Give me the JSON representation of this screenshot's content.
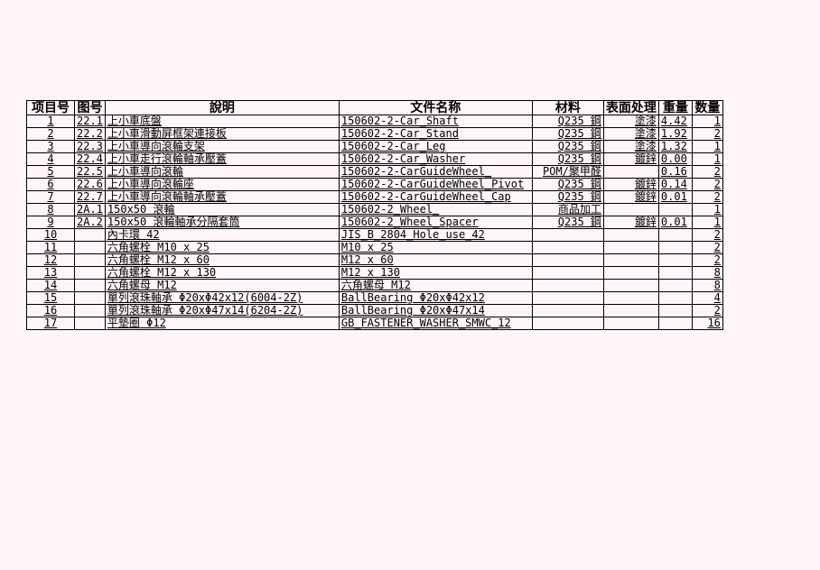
{
  "headers": [
    "项目号",
    "图号",
    "說明",
    "文件名称",
    "材料",
    "表面处理",
    "重量",
    "数量"
  ],
  "rows": [
    [
      "1",
      "22.1",
      "上小車底盤",
      "150602-2-Car_Shaft",
      "Q235 鋼",
      "塗漆",
      "4.42",
      "1"
    ],
    [
      "2",
      "22.2",
      "上小車滑動屏框架連接板",
      "150602-2-Car_Stand",
      "Q235 鋼",
      "塗漆",
      "1.92",
      "2"
    ],
    [
      "3",
      "22.3",
      "上小車導向滾輪支架",
      "150602-2-Car_Leg",
      "Q235 鋼",
      "塗漆",
      "1.32",
      "1"
    ],
    [
      "4",
      "22.4",
      "上小車走行滾輪軸承壓蓋",
      "150602-2-Car_Washer",
      "Q235 鋼",
      "鍍鋅",
      "0.00",
      "1"
    ],
    [
      "5",
      "22.5",
      "上小車導向滾輪",
      "150602-2-CarGuideWheel_",
      "POM/聚甲醛",
      "",
      "0.16",
      "2"
    ],
    [
      "6",
      "22.6",
      "上小車導向滾輪座",
      "150602-2-CarGuideWheel_Pivot",
      "Q235 鋼",
      "鍍鋅",
      "0.14",
      "2"
    ],
    [
      "7",
      "22.7",
      "上小車導向滾輪軸承壓蓋",
      "150602-2-CarGuideWheel_Cap",
      "Q235 鋼",
      "鍍鋅",
      "0.01",
      "2"
    ],
    [
      "8",
      "2A.1",
      "150x50 滾輪",
      "150602-2_Wheel_",
      "商品加工",
      "",
      "",
      "1"
    ],
    [
      "9",
      "2A.2",
      "150x50 滾輪軸承分隔套筒",
      "150602-2_Wheel_Spacer",
      "Q235 鋼",
      "鍍鋅",
      "0.01",
      "1"
    ],
    [
      "10",
      "",
      "內卡環 42",
      "JIS_B_2804_Hole_use_42",
      "",
      "",
      "",
      "2"
    ],
    [
      "11",
      "",
      "六角螺栓 M10 x 25",
      "M10 x 25",
      "",
      "",
      "",
      "2"
    ],
    [
      "12",
      "",
      "六角螺栓 M12 x 60",
      "M12 x 60",
      "",
      "",
      "",
      "2"
    ],
    [
      "13",
      "",
      "六角螺栓 M12 x 130",
      "M12 x 130",
      "",
      "",
      "",
      "8"
    ],
    [
      "14",
      "",
      "六角螺母 M12",
      "六角螺母 M12",
      "",
      "",
      "",
      "8"
    ],
    [
      "15",
      "",
      "單列滾珠軸承 Φ20xΦ42x12(6004-2Z)",
      "BallBearing Φ20xΦ42x12",
      "",
      "",
      "",
      "4"
    ],
    [
      "16",
      "",
      "單列滾珠軸承 Φ20xΦ47x14(6204-2Z)",
      "BallBearing Φ20xΦ47x14",
      "",
      "",
      "",
      "2"
    ],
    [
      "17",
      "",
      "平墊圈 Φ12",
      "GB_FASTENER_WASHER_SMWC_12",
      "",
      "",
      "",
      "16"
    ]
  ]
}
